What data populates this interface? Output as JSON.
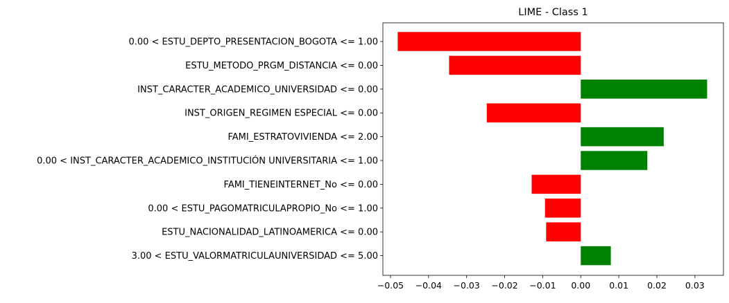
{
  "chart_data": {
    "type": "bar",
    "orientation": "horizontal",
    "title": "LIME - Class 1",
    "xlabel": "",
    "ylabel": "",
    "xlim": [
      -0.052,
      0.0375
    ],
    "grid": false,
    "legend": "none",
    "categories": [
      "0.00 < ESTU_DEPTO_PRESENTACION_BOGOTA <= 1.00",
      "ESTU_METODO_PRGM_DISTANCIA <= 0.00",
      "INST_CARACTER_ACADEMICO_UNIVERSIDAD <= 0.00",
      "INST_ORIGEN_REGIMEN ESPECIAL <= 0.00",
      "FAMI_ESTRATOVIVIENDA <= 2.00",
      "0.00 < INST_CARACTER_ACADEMICO_INSTITUCIÓN UNIVERSITARIA <= 1.00",
      "FAMI_TIENEINTERNET_No <= 0.00",
      "0.00 < ESTU_PAGOMATRICULAPROPIO_No <= 1.00",
      "ESTU_NACIONALIDAD_LATINOAMERICA <= 0.00",
      "3.00 < ESTU_VALORMATRICULAUNIVERSIDAD <= 5.00"
    ],
    "values": [
      -0.0481,
      -0.0346,
      0.0332,
      -0.0247,
      0.0218,
      0.0175,
      -0.0129,
      -0.0094,
      -0.0091,
      0.0079
    ],
    "xticks": [
      "−0.05",
      "−0.04",
      "−0.03",
      "−0.02",
      "−0.01",
      "0.00",
      "0.01",
      "0.02",
      "0.03"
    ],
    "xtick_values": [
      -0.05,
      -0.04,
      -0.03,
      -0.02,
      -0.01,
      0.0,
      0.01,
      0.02,
      0.03
    ],
    "colors": {
      "positive": "#008000",
      "negative": "#ff0000"
    }
  }
}
